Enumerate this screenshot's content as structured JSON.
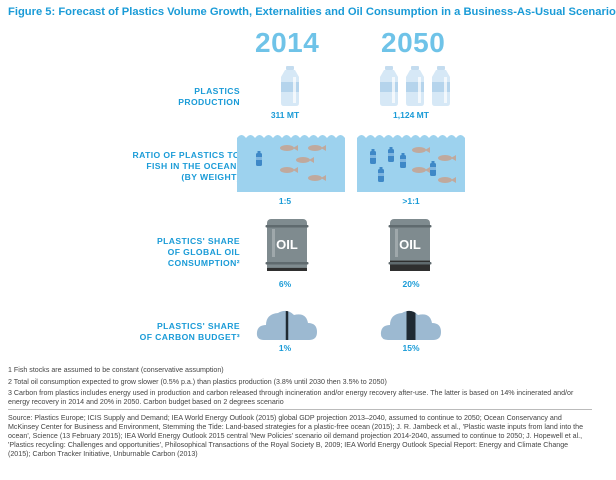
{
  "title": "Figure 5: Forecast of Plastics Volume Growth, Externalities and Oil Consumption in a Business-As-Usual Scenario",
  "years": [
    "2014",
    "2050"
  ],
  "rows": [
    {
      "label": "PLASTICS\nPRODUCTION",
      "values": [
        "311 MT",
        "1,124 MT"
      ]
    },
    {
      "label": "RATIO OF PLASTICS TO\nFISH IN THE OCEAN¹\n(BY WEIGHT)",
      "values": [
        "1:5",
        ">1:1"
      ]
    },
    {
      "label": "PLASTICS' SHARE\nOF GLOBAL OIL\nCONSUMPTION²",
      "values": [
        "6%",
        "20%"
      ]
    },
    {
      "label": "PLASTICS' SHARE\nOF CARBON BUDGET³",
      "values": [
        "1%",
        "15%"
      ]
    }
  ],
  "barrel_text": "OIL",
  "footnotes": [
    "1 Fish stocks are assumed to be constant (conservative assumption)",
    "2 Total oil consumption expected to grow slower (0.5% p.a.) than plastics production (3.8% until 2030 then 3.5% to 2050)",
    "3 Carbon from plastics includes energy used in production and carbon released through incineration and/or energy recovery after-use. The latter is based on 14% incinerated and/or energy recovery in 2014 and 20% in 2050. Carbon budget based on 2 degrees scenario"
  ],
  "source": "Source: Plastics Europe; ICIS Supply and Demand; IEA World Energy Outlook (2015) global GDP projection 2013–2040, assumed to continue to 2050; Ocean Conservancy and McKinsey Center for Business and Environment, Stemming the Tide: Land-based strategies for a plastic-free ocean (2015); J. R. Jambeck et al., 'Plastic waste inputs from land into the ocean', Science (13 February 2015); IEA World Energy Outlook 2015 central 'New Policies' scenario oil demand projection 2014-2040, assumed to continue to 2050; J. Hopewell et al., 'Plastics recycling: Challenges and opportunities', Philosophical Transactions of the Royal Society B, 2009; IEA World Energy Outlook Special Report: Energy and Climate Change (2015); Carbon Tracker Initiative, Unburnable Carbon (2013)",
  "colors": {
    "accent": "#1a9bd7",
    "year": "#6fc3e8",
    "ocean": "#9dd2ee",
    "fish": "#c0a99d",
    "barrel": "#7f8b8f",
    "barrel_fill": "#2f2f2f",
    "cloud": "#9cb9d1"
  },
  "chart_data": {
    "type": "table",
    "title": "Figure 5: Forecast of Plastics Volume Growth, Externalities and Oil Consumption in a Business-As-Usual Scenario",
    "columns": [
      "2014",
      "2050"
    ],
    "rows": [
      {
        "metric": "PLASTICS PRODUCTION",
        "2014": "311 MT",
        "2050": "1,124 MT",
        "bottles": [
          1,
          3
        ]
      },
      {
        "metric": "RATIO OF PLASTICS TO FISH IN THE OCEAN (BY WEIGHT)",
        "2014": "1:5",
        "2050": ">1:1",
        "plastics_icons": [
          1,
          5
        ],
        "fish_icons": [
          5,
          4
        ]
      },
      {
        "metric": "PLASTICS' SHARE OF GLOBAL OIL CONSUMPTION",
        "2014": "6%",
        "2050": "20%",
        "share": [
          0.06,
          0.2
        ]
      },
      {
        "metric": "PLASTICS' SHARE OF CARBON BUDGET",
        "2014": "1%",
        "2050": "15%",
        "share": [
          0.01,
          0.15
        ]
      }
    ]
  }
}
